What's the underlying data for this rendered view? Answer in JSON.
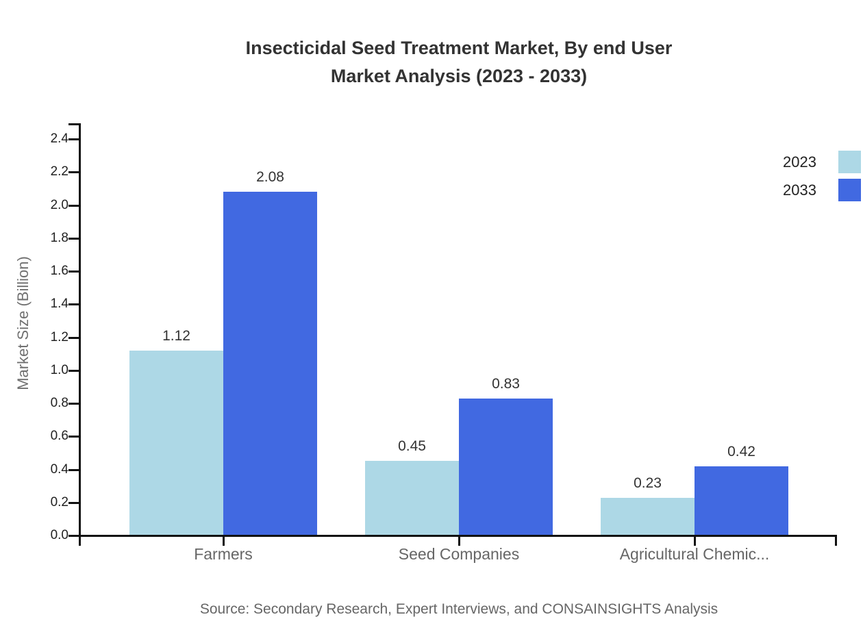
{
  "title": {
    "line1": "Insecticidal Seed Treatment Market, By end User",
    "line2": "Market Analysis (2023 - 2033)"
  },
  "source": "Source: Secondary Research, Expert Interviews, and CONSAINSIGHTS Analysis",
  "chart_data": {
    "type": "bar",
    "title": "Insecticidal Seed Treatment Market, By end User Market Analysis (2023 - 2033)",
    "categories": [
      "Farmers",
      "Seed Companies",
      "Agricultural Chemic..."
    ],
    "series": [
      {
        "name": "2023",
        "color": "#ADD8E6",
        "values": [
          1.12,
          0.45,
          0.23
        ]
      },
      {
        "name": "2033",
        "color": "#4169E1",
        "values": [
          2.08,
          0.83,
          0.42
        ]
      }
    ],
    "xlabel": "",
    "ylabel": "Market Size (Billion)",
    "ylim": [
      0,
      2.4
    ],
    "ytick_labels": [
      "0.0",
      "0.2",
      "0.4",
      "0.6",
      "0.8",
      "1.0",
      "1.2",
      "1.4",
      "1.6",
      "1.8",
      "2.0",
      "2.2",
      "2.4"
    ],
    "grid": false,
    "legend_position": "top-right",
    "value_labels": true
  },
  "colors": {
    "series_2023": "#ADD8E6",
    "series_2033": "#4169E1",
    "axis": "#111111",
    "title_text": "#333333",
    "muted_text": "#666666"
  }
}
